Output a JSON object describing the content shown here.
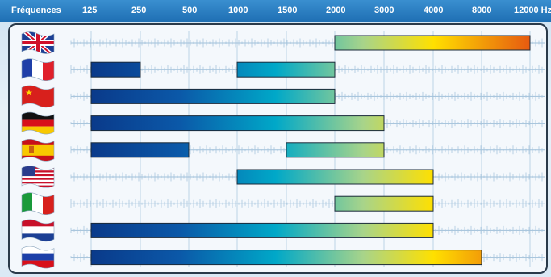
{
  "header": {
    "title": "Fréquences"
  },
  "colors": {
    "header_bg": "#2a7fc4",
    "bar_low": "#0a3a8a",
    "bar_mid": "#00a8c8",
    "bar_high": "#ffe000",
    "bar_top": "#e65a10"
  },
  "chart_data": {
    "type": "bar",
    "orientation": "horizontal-range",
    "x_ticks": [
      "125",
      "250",
      "500",
      "1000",
      "1500",
      "2000",
      "3000",
      "4000",
      "8000",
      "12000 Hz"
    ],
    "x_tick_values": [
      125,
      250,
      500,
      1000,
      1500,
      2000,
      3000,
      4000,
      8000,
      12000
    ],
    "x_scale": "categorical-frequency",
    "grid": true,
    "rows": [
      {
        "icon": "flag-uk-icon",
        "ranges": [
          [
            2000,
            12000
          ]
        ]
      },
      {
        "icon": "flag-france-icon",
        "ranges": [
          [
            125,
            250
          ],
          [
            1000,
            2000
          ]
        ]
      },
      {
        "icon": "flag-china-icon",
        "ranges": [
          [
            125,
            2000
          ]
        ]
      },
      {
        "icon": "flag-germany-icon",
        "ranges": [
          [
            125,
            3000
          ]
        ]
      },
      {
        "icon": "flag-spain-icon",
        "ranges": [
          [
            125,
            500
          ],
          [
            1500,
            3000
          ]
        ]
      },
      {
        "icon": "flag-usa-icon",
        "ranges": [
          [
            1000,
            4000
          ]
        ]
      },
      {
        "icon": "flag-italy-icon",
        "ranges": [
          [
            2000,
            4000
          ]
        ]
      },
      {
        "icon": "flag-netherlands-icon",
        "ranges": [
          [
            125,
            4000
          ]
        ]
      },
      {
        "icon": "flag-russia-icon",
        "ranges": [
          [
            125,
            8000
          ]
        ]
      }
    ]
  }
}
